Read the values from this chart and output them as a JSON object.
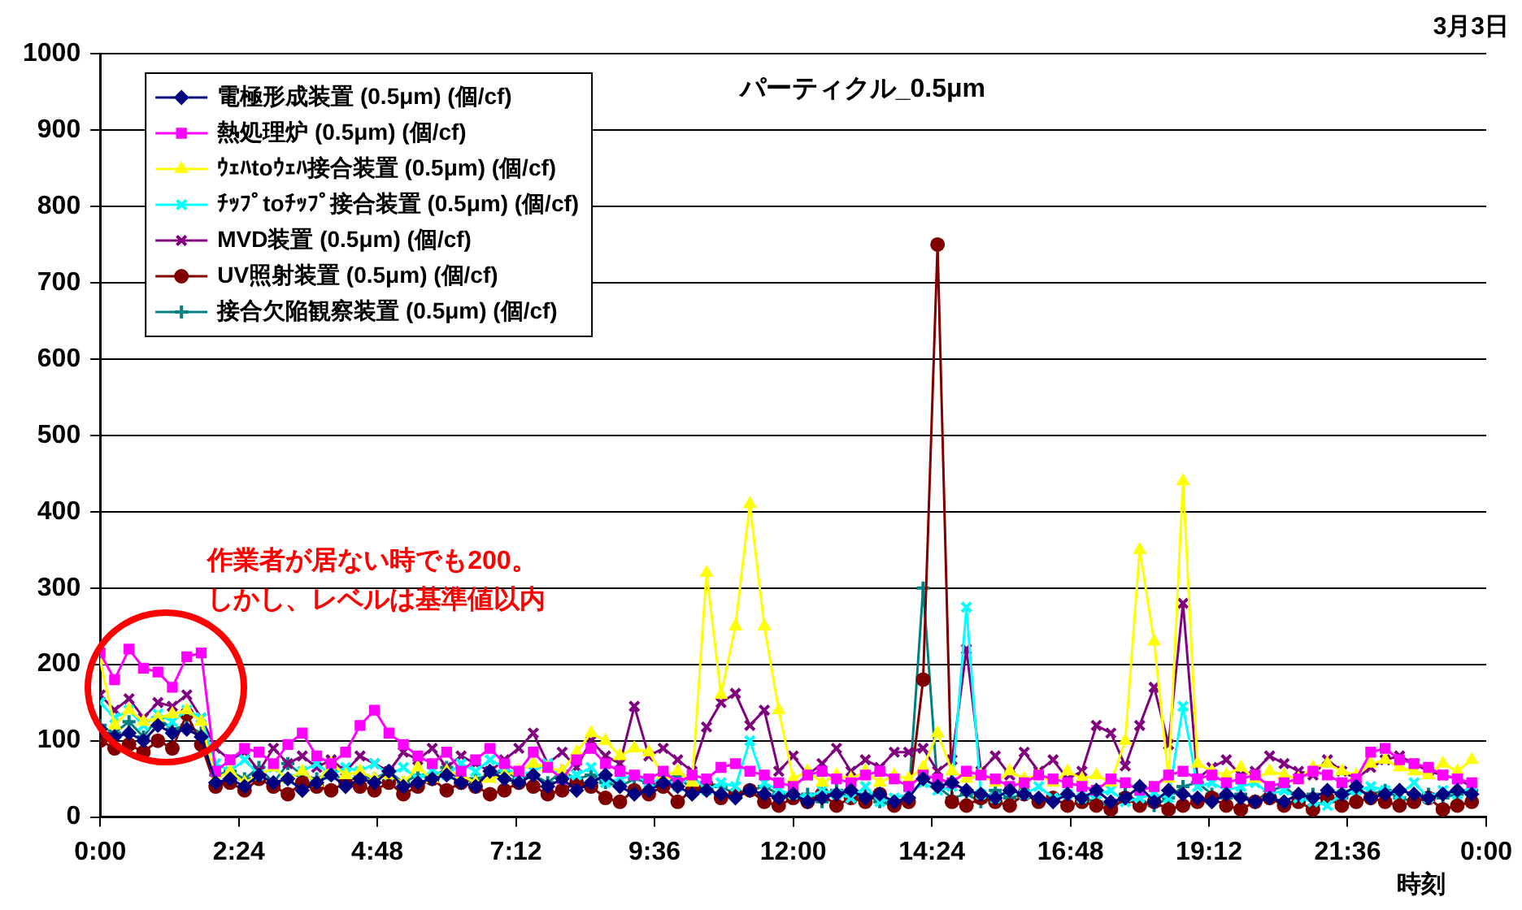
{
  "chart_data": {
    "type": "line",
    "title": "パーティクル_0.5μm",
    "xlabel": "時刻",
    "annotations": [
      "3月3日",
      "作業者が居ない時でも200。しかし、レベルは基準値以内"
    ],
    "x": [
      0,
      0.25,
      0.5,
      0.75,
      1,
      1.25,
      1.5,
      1.75,
      2,
      2.25,
      2.5,
      2.75,
      3,
      3.25,
      3.5,
      3.75,
      4,
      4.25,
      4.5,
      4.75,
      5,
      5.25,
      5.5,
      5.75,
      6,
      6.25,
      6.5,
      6.75,
      7,
      7.25,
      7.5,
      7.75,
      8,
      8.25,
      8.5,
      8.75,
      9,
      9.25,
      9.5,
      9.75,
      10,
      10.25,
      10.5,
      10.75,
      11,
      11.25,
      11.5,
      11.75,
      12,
      12.25,
      12.5,
      12.75,
      13,
      13.25,
      13.5,
      13.75,
      14,
      14.25,
      14.5,
      14.75,
      15,
      15.25,
      15.5,
      15.75,
      16,
      16.25,
      16.5,
      16.75,
      17,
      17.25,
      17.5,
      17.75,
      18,
      18.25,
      18.5,
      18.75,
      19,
      19.25,
      19.5,
      19.75,
      20,
      20.25,
      20.5,
      20.75,
      21,
      21.25,
      21.5,
      21.75,
      22,
      22.25,
      22.5,
      22.75,
      23,
      23.25,
      23.5,
      23.75
    ],
    "series": [
      {
        "name": "電極形成装置 (0.5μm) (個/cf)",
        "color": "#000080",
        "marker": "diamond",
        "values": [
          115,
          105,
          110,
          100,
          120,
          110,
          115,
          105,
          45,
          50,
          40,
          55,
          45,
          50,
          35,
          45,
          55,
          40,
          50,
          45,
          60,
          40,
          45,
          50,
          55,
          45,
          40,
          60,
          50,
          45,
          55,
          40,
          50,
          35,
          45,
          55,
          40,
          30,
          35,
          45,
          40,
          30,
          35,
          30,
          25,
          35,
          30,
          25,
          30,
          20,
          25,
          30,
          35,
          25,
          30,
          20,
          25,
          50,
          40,
          45,
          35,
          30,
          25,
          35,
          30,
          25,
          20,
          30,
          25,
          35,
          20,
          25,
          40,
          20,
          35,
          30,
          25,
          20,
          30,
          25,
          20,
          25,
          20,
          30,
          25,
          35,
          30,
          40,
          25,
          30,
          35,
          30,
          25,
          30,
          35,
          30
        ]
      },
      {
        "name": "熱処理炉 (0.5μm) (個/cf)",
        "color": "#ff00ff",
        "marker": "square",
        "values": [
          215,
          180,
          220,
          195,
          190,
          170,
          210,
          215,
          60,
          75,
          90,
          85,
          70,
          95,
          110,
          80,
          70,
          85,
          120,
          140,
          110,
          95,
          80,
          70,
          85,
          60,
          75,
          90,
          70,
          60,
          85,
          65,
          50,
          75,
          90,
          70,
          60,
          55,
          50,
          60,
          45,
          55,
          50,
          65,
          70,
          60,
          55,
          45,
          40,
          55,
          60,
          50,
          45,
          55,
          60,
          50,
          40,
          55,
          50,
          45,
          60,
          55,
          50,
          40,
          45,
          55,
          50,
          45,
          40,
          35,
          50,
          45,
          35,
          40,
          55,
          60,
          50,
          55,
          45,
          50,
          55,
          40,
          45,
          50,
          60,
          55,
          45,
          50,
          85,
          90,
          75,
          70,
          65,
          55,
          50,
          45
        ]
      },
      {
        "name": "ｳｪﾊtoｳｪﾊ接合装置 (0.5μm) (個/cf)",
        "color": "#ffff00",
        "marker": "triangle",
        "values": [
          205,
          120,
          140,
          125,
          130,
          135,
          140,
          125,
          50,
          60,
          45,
          55,
          65,
          50,
          60,
          45,
          70,
          55,
          60,
          50,
          55,
          45,
          65,
          50,
          60,
          55,
          45,
          50,
          55,
          60,
          70,
          65,
          60,
          85,
          110,
          100,
          80,
          90,
          85,
          55,
          60,
          45,
          320,
          160,
          250,
          410,
          250,
          140,
          50,
          60,
          45,
          55,
          50,
          60,
          45,
          55,
          50,
          65,
          110,
          60,
          50,
          55,
          45,
          60,
          50,
          55,
          45,
          60,
          50,
          55,
          45,
          100,
          350,
          230,
          50,
          440,
          70,
          60,
          55,
          65,
          50,
          60,
          55,
          50,
          65,
          70,
          60,
          55,
          70,
          75,
          65,
          60,
          55,
          70,
          60,
          75
        ]
      },
      {
        "name": "ﾁｯﾌﾟtoﾁｯﾌﾟ接合装置 (0.5μm) (個/cf)",
        "color": "#00ffff",
        "marker": "x",
        "values": [
          150,
          130,
          140,
          120,
          135,
          125,
          140,
          130,
          70,
          60,
          75,
          55,
          65,
          50,
          60,
          70,
          55,
          65,
          60,
          70,
          55,
          65,
          50,
          60,
          55,
          70,
          60,
          75,
          65,
          55,
          60,
          70,
          50,
          55,
          65,
          45,
          50,
          55,
          45,
          50,
          40,
          55,
          35,
          45,
          40,
          100,
          45,
          35,
          30,
          25,
          35,
          30,
          25,
          40,
          20,
          25,
          30,
          45,
          35,
          40,
          275,
          30,
          25,
          35,
          30,
          40,
          25,
          30,
          25,
          30,
          35,
          20,
          25,
          30,
          25,
          145,
          40,
          45,
          35,
          40,
          45,
          30,
          35,
          25,
          20,
          15,
          30,
          35,
          40,
          35,
          30,
          45,
          25,
          35,
          30,
          40
        ]
      },
      {
        "name": "MVD装置 (0.5μm) (個/cf)",
        "color": "#800080",
        "marker": "x",
        "values": [
          160,
          140,
          155,
          130,
          150,
          145,
          160,
          130,
          90,
          75,
          85,
          60,
          90,
          70,
          80,
          65,
          75,
          60,
          80,
          70,
          60,
          85,
          75,
          90,
          65,
          80,
          70,
          60,
          75,
          90,
          110,
          70,
          85,
          65,
          100,
          80,
          70,
          145,
          80,
          90,
          75,
          60,
          118,
          150,
          162,
          120,
          140,
          60,
          80,
          55,
          70,
          90,
          60,
          75,
          65,
          85,
          85,
          90,
          60,
          75,
          220,
          60,
          80,
          55,
          85,
          60,
          75,
          50,
          60,
          120,
          110,
          67,
          120,
          170,
          95,
          280,
          50,
          65,
          75,
          55,
          60,
          80,
          70,
          60,
          55,
          75,
          60,
          50,
          65,
          75,
          80,
          70,
          60,
          55,
          50,
          40
        ]
      },
      {
        "name": "UV照射装置 (0.5μm) (個/cf)",
        "color": "#800000",
        "marker": "circle",
        "values": [
          100,
          90,
          95,
          85,
          100,
          90,
          135,
          95,
          40,
          45,
          35,
          50,
          40,
          30,
          45,
          40,
          35,
          45,
          40,
          35,
          45,
          30,
          40,
          50,
          35,
          45,
          40,
          30,
          35,
          45,
          40,
          30,
          35,
          45,
          40,
          25,
          20,
          35,
          30,
          40,
          20,
          35,
          40,
          25,
          30,
          35,
          20,
          15,
          25,
          20,
          30,
          15,
          25,
          20,
          30,
          15,
          20,
          180,
          750,
          20,
          15,
          25,
          20,
          15,
          30,
          20,
          25,
          15,
          20,
          15,
          10,
          25,
          15,
          20,
          10,
          15,
          20,
          25,
          15,
          10,
          20,
          25,
          15,
          20,
          10,
          25,
          15,
          20,
          25,
          20,
          15,
          20,
          25,
          10,
          15,
          20
        ]
      },
      {
        "name": "接合欠陥観察装置 (0.5μm) (個/cf)",
        "color": "#008080",
        "marker": "cross",
        "values": [
          120,
          110,
          125,
          105,
          130,
          115,
          120,
          110,
          55,
          60,
          50,
          65,
          45,
          70,
          55,
          50,
          60,
          45,
          55,
          50,
          60,
          45,
          55,
          50,
          65,
          45,
          50,
          55,
          60,
          50,
          55,
          45,
          60,
          50,
          55,
          45,
          40,
          50,
          45,
          40,
          55,
          35,
          45,
          40,
          30,
          35,
          40,
          30,
          25,
          30,
          20,
          35,
          25,
          30,
          20,
          15,
          25,
          300,
          40,
          25,
          30,
          20,
          35,
          25,
          30,
          20,
          25,
          30,
          25,
          20,
          15,
          30,
          20,
          15,
          25,
          40,
          45,
          30,
          25,
          30,
          20,
          35,
          40,
          25,
          30,
          20,
          25,
          35,
          30,
          35,
          25,
          20,
          30,
          25,
          30,
          35
        ]
      }
    ],
    "xlim": [
      0,
      24
    ],
    "xticks": [
      {
        "value": 0,
        "label": "0:00"
      },
      {
        "value": 2.4,
        "label": "2:24"
      },
      {
        "value": 4.8,
        "label": "4:48"
      },
      {
        "value": 7.2,
        "label": "7:12"
      },
      {
        "value": 9.6,
        "label": "9:36"
      },
      {
        "value": 12,
        "label": "12:00"
      },
      {
        "value": 14.4,
        "label": "14:24"
      },
      {
        "value": 16.8,
        "label": "16:48"
      },
      {
        "value": 19.2,
        "label": "19:12"
      },
      {
        "value": 21.6,
        "label": "21:36"
      },
      {
        "value": 24,
        "label": "0:00"
      }
    ],
    "ylim": [
      0,
      1000
    ],
    "yticks": [
      0,
      100,
      200,
      300,
      400,
      500,
      600,
      700,
      800,
      900,
      1000
    ],
    "grid": "y",
    "legend": "top left",
    "line_style": "solid"
  }
}
